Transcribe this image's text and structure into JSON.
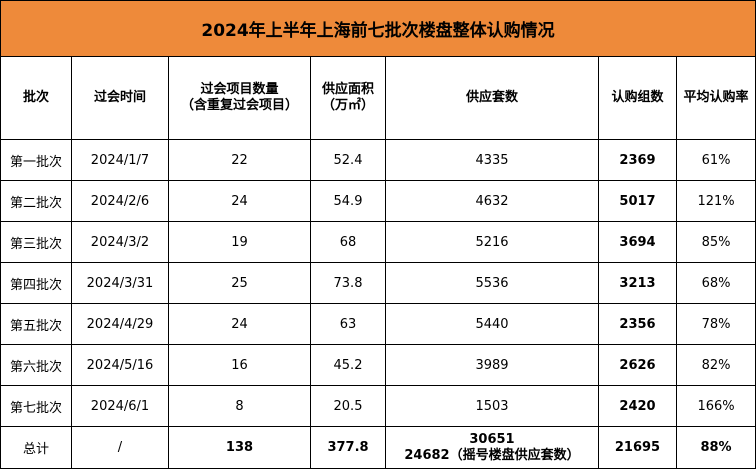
{
  "title": "2024年上半年上海前七批次楼盘整体认购情况",
  "columns": [
    {
      "line1": "批次",
      "line2": ""
    },
    {
      "line1": "过会时间",
      "line2": ""
    },
    {
      "line1": "过会项目数量",
      "line2": "（含重复过会项目）"
    },
    {
      "line1": "供应面积",
      "line2": "（万㎡）"
    },
    {
      "line1": "供应套数",
      "line2": ""
    },
    {
      "line1": "认购组数",
      "line2": ""
    },
    {
      "line1": "平均认购率",
      "line2": ""
    }
  ],
  "rows": [
    {
      "batch": "第一批次",
      "date": "2024/1/7",
      "projects": "22",
      "area": "52.4",
      "units": "4335",
      "groups": "2369",
      "rate": "61%"
    },
    {
      "batch": "第二批次",
      "date": "2024/2/6",
      "projects": "24",
      "area": "54.9",
      "units": "4632",
      "groups": "5017",
      "rate": "121%"
    },
    {
      "batch": "第三批次",
      "date": "2024/3/2",
      "projects": "19",
      "area": "68",
      "units": "5216",
      "groups": "3694",
      "rate": "85%"
    },
    {
      "batch": "第四批次",
      "date": "2024/3/31",
      "projects": "25",
      "area": "73.8",
      "units": "5536",
      "groups": "3213",
      "rate": "68%"
    },
    {
      "batch": "第五批次",
      "date": "2024/4/29",
      "projects": "24",
      "area": "63",
      "units": "5440",
      "groups": "2356",
      "rate": "78%"
    },
    {
      "batch": "第六批次",
      "date": "2024/5/16",
      "projects": "16",
      "area": "45.2",
      "units": "3989",
      "groups": "2626",
      "rate": "82%"
    },
    {
      "batch": "第七批次",
      "date": "2024/6/1",
      "projects": "8",
      "area": "20.5",
      "units": "1503",
      "groups": "2420",
      "rate": "166%"
    }
  ],
  "total": {
    "batch": "总计",
    "date": "/",
    "projects": "138",
    "area": "377.8",
    "units_line1": "30651",
    "units_line2": "24682（摇号楼盘供应套数）",
    "groups": "21695",
    "rate": "88%"
  }
}
